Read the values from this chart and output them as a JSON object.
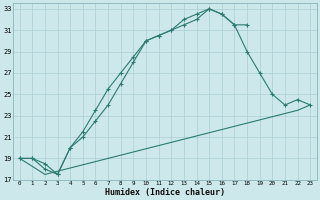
{
  "xlabel": "Humidex (Indice chaleur)",
  "bg_color": "#cce8ea",
  "grid_color": "#aacdd2",
  "line_color": "#2d7a72",
  "xlim": [
    -0.5,
    23.5
  ],
  "ylim": [
    17,
    33.5
  ],
  "xticks": [
    0,
    1,
    2,
    3,
    4,
    5,
    6,
    7,
    8,
    9,
    10,
    11,
    12,
    13,
    14,
    15,
    16,
    17,
    18,
    19,
    20,
    21,
    22,
    23
  ],
  "yticks": [
    17,
    19,
    21,
    23,
    25,
    27,
    29,
    31,
    33
  ],
  "series1_x": [
    0,
    1,
    2,
    3,
    4,
    5,
    6,
    7,
    8,
    9,
    10,
    11,
    12,
    13,
    14,
    15,
    16,
    17,
    18
  ],
  "series1_y": [
    19,
    19,
    18.5,
    17.5,
    20,
    21,
    22.5,
    24,
    26,
    28,
    30,
    30.5,
    31,
    32,
    32.5,
    33,
    32.5,
    31.5,
    31.5
  ],
  "series2_x": [
    0,
    1,
    2,
    3,
    4,
    5,
    6,
    7,
    8,
    9,
    10,
    11,
    12,
    13,
    14,
    15,
    16,
    17,
    18,
    19,
    20,
    21,
    22,
    23
  ],
  "series2_y": [
    19,
    19,
    18,
    17.5,
    20,
    21.5,
    23.5,
    25.5,
    27,
    28.5,
    30,
    30.5,
    31,
    31.5,
    32,
    33,
    32.5,
    31.5,
    29,
    27,
    25,
    24,
    24.5,
    24
  ],
  "series3_x": [
    0,
    2,
    23
  ],
  "series3_y": [
    19,
    17.5,
    24
  ],
  "series3_full_x": [
    0,
    1,
    2,
    3,
    4,
    5,
    6,
    7,
    8,
    9,
    10,
    11,
    12,
    13,
    14,
    15,
    16,
    17,
    18,
    19,
    20,
    21,
    22,
    23
  ],
  "series3_full_y": [
    19,
    18.25,
    17.5,
    17.8,
    18.1,
    18.4,
    18.7,
    19.0,
    19.3,
    19.6,
    19.9,
    20.2,
    20.5,
    20.8,
    21.1,
    21.4,
    21.7,
    22.0,
    22.3,
    22.6,
    22.9,
    23.2,
    23.5,
    24.0
  ]
}
